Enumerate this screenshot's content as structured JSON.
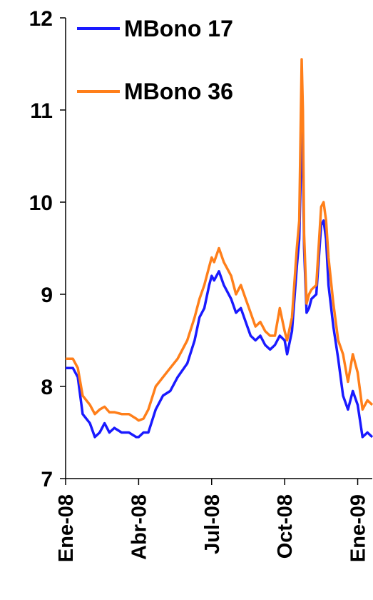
{
  "chart_data": {
    "type": "line",
    "title": "",
    "xlabel": "",
    "ylabel": "",
    "ylim": [
      7,
      12
    ],
    "yticks": [
      7,
      8,
      9,
      10,
      11,
      12
    ],
    "x_tick_labels": [
      "Ene-08",
      "Abr-08",
      "Jul-08",
      "Oct-08",
      "Ene-09"
    ],
    "x_tick_positions": [
      0,
      3,
      6,
      9,
      12
    ],
    "xlim": [
      0,
      12.6
    ],
    "x_unit": "months since Ene-08",
    "grid": false,
    "legend_position": "top-left",
    "series": [
      {
        "name": "MBono 17",
        "color": "#1a1aff",
        "x": [
          0,
          0.3,
          0.5,
          0.7,
          1.0,
          1.2,
          1.4,
          1.6,
          1.8,
          2.0,
          2.3,
          2.6,
          2.9,
          3.0,
          3.2,
          3.4,
          3.7,
          4.0,
          4.3,
          4.6,
          5.0,
          5.3,
          5.5,
          5.7,
          5.9,
          6.0,
          6.1,
          6.3,
          6.5,
          6.8,
          7.0,
          7.2,
          7.4,
          7.6,
          7.8,
          8.0,
          8.2,
          8.4,
          8.6,
          8.8,
          9.0,
          9.1,
          9.3,
          9.5,
          9.6,
          9.7,
          9.75,
          9.8,
          9.9,
          10.0,
          10.1,
          10.3,
          10.5,
          10.6,
          10.7,
          10.8,
          11.0,
          11.2,
          11.4,
          11.6,
          11.8,
          12.0,
          12.2,
          12.4,
          12.6
        ],
        "values": [
          8.2,
          8.2,
          8.1,
          7.7,
          7.6,
          7.45,
          7.5,
          7.6,
          7.5,
          7.55,
          7.5,
          7.5,
          7.45,
          7.45,
          7.5,
          7.5,
          7.75,
          7.9,
          7.95,
          8.1,
          8.25,
          8.5,
          8.75,
          8.85,
          9.1,
          9.2,
          9.15,
          9.25,
          9.1,
          8.95,
          8.8,
          8.85,
          8.7,
          8.55,
          8.5,
          8.55,
          8.45,
          8.4,
          8.45,
          8.55,
          8.5,
          8.35,
          8.6,
          9.3,
          9.6,
          10.75,
          10.5,
          9.5,
          8.8,
          8.85,
          8.95,
          9.0,
          9.75,
          9.8,
          9.6,
          9.1,
          8.65,
          8.3,
          7.9,
          7.75,
          7.95,
          7.8,
          7.45,
          7.5,
          7.45
        ]
      },
      {
        "name": "MBono 36",
        "color": "#ff7f1a",
        "x": [
          0,
          0.3,
          0.5,
          0.7,
          1.0,
          1.2,
          1.4,
          1.6,
          1.8,
          2.0,
          2.3,
          2.6,
          2.9,
          3.0,
          3.2,
          3.4,
          3.7,
          4.0,
          4.3,
          4.6,
          5.0,
          5.3,
          5.5,
          5.7,
          5.9,
          6.0,
          6.1,
          6.3,
          6.5,
          6.8,
          7.0,
          7.2,
          7.4,
          7.6,
          7.8,
          8.0,
          8.2,
          8.4,
          8.6,
          8.8,
          9.0,
          9.1,
          9.3,
          9.5,
          9.6,
          9.7,
          9.75,
          9.8,
          9.9,
          10.0,
          10.1,
          10.3,
          10.5,
          10.6,
          10.7,
          10.8,
          11.0,
          11.2,
          11.4,
          11.6,
          11.8,
          12.0,
          12.2,
          12.4,
          12.6
        ],
        "values": [
          8.3,
          8.3,
          8.2,
          7.9,
          7.8,
          7.7,
          7.75,
          7.78,
          7.72,
          7.72,
          7.7,
          7.7,
          7.65,
          7.63,
          7.65,
          7.75,
          8.0,
          8.1,
          8.2,
          8.3,
          8.5,
          8.75,
          8.95,
          9.1,
          9.3,
          9.4,
          9.35,
          9.5,
          9.35,
          9.2,
          9.0,
          9.1,
          8.95,
          8.8,
          8.65,
          8.7,
          8.6,
          8.55,
          8.55,
          8.85,
          8.6,
          8.5,
          8.75,
          9.5,
          9.8,
          11.55,
          11.0,
          9.65,
          8.9,
          9.0,
          9.05,
          9.1,
          9.95,
          10.0,
          9.8,
          9.4,
          8.9,
          8.5,
          8.35,
          8.05,
          8.35,
          8.15,
          7.75,
          7.85,
          7.8
        ]
      }
    ]
  }
}
